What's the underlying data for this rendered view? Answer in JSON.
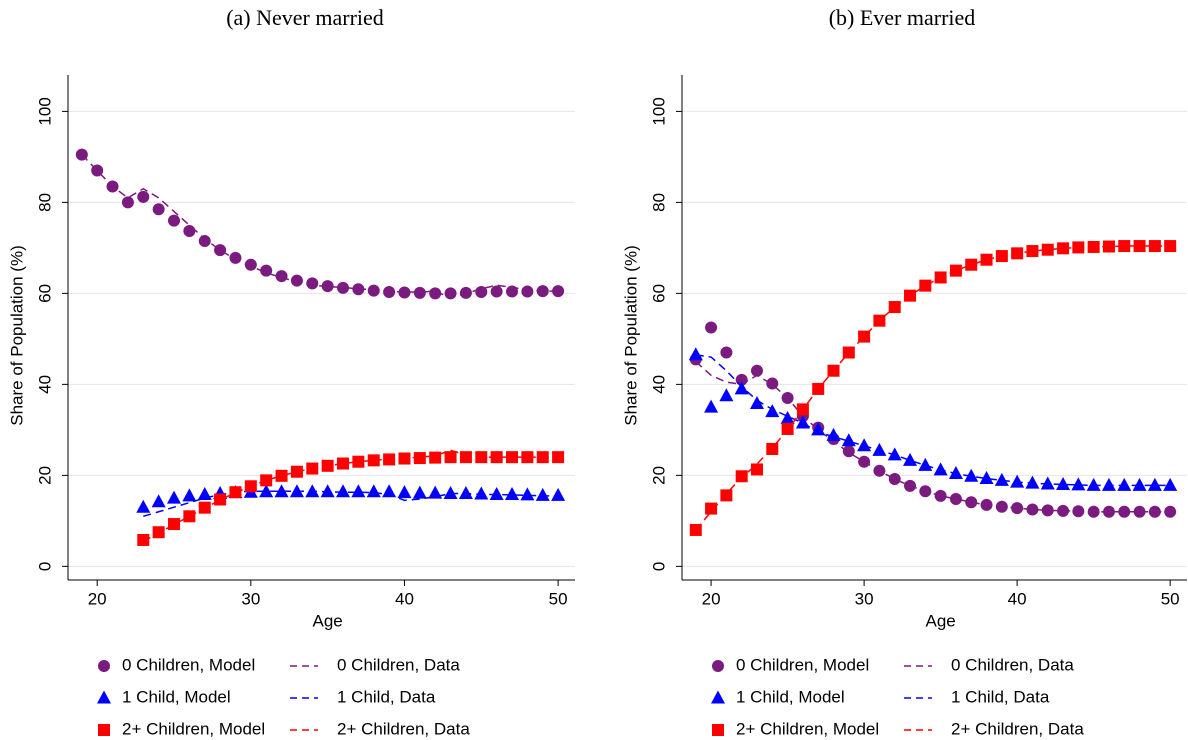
{
  "chart_data": [
    {
      "type": "line",
      "title": "(a) Never married",
      "xlabel": "Age",
      "ylabel": "Share of Population (%)",
      "x": [
        19,
        20,
        21,
        22,
        23,
        24,
        25,
        26,
        27,
        28,
        29,
        30,
        31,
        32,
        33,
        34,
        35,
        36,
        37,
        38,
        39,
        40,
        41,
        42,
        43,
        44,
        45,
        46,
        47,
        48,
        49,
        50
      ],
      "xlim": [
        18.1,
        51.1
      ],
      "ylim": [
        -3,
        108
      ],
      "xticks": [
        20,
        30,
        40,
        50
      ],
      "yticks": [
        0,
        20,
        40,
        60,
        80,
        100
      ],
      "grid": true,
      "legend": "bottom",
      "series": [
        {
          "name": "0 Children, Model",
          "color": "#7b1a7f",
          "marker": "circle",
          "values": [
            90.5,
            87,
            83.5,
            80,
            81.2,
            78.5,
            76,
            73.7,
            71.5,
            69.5,
            67.8,
            66.3,
            65,
            63.8,
            62.8,
            62.2,
            61.6,
            61.2,
            60.9,
            60.6,
            60.3,
            60.2,
            60.1,
            60,
            60,
            60.1,
            60.3,
            60.4,
            60.4,
            60.4,
            60.5,
            60.5
          ]
        },
        {
          "name": "0 Children, Data",
          "color": "#7b1a7f",
          "dash": true,
          "values": [
            90.5,
            87,
            83.5,
            81,
            83,
            81,
            78,
            75,
            72,
            69.5,
            67.5,
            66,
            64.5,
            63.5,
            62.5,
            61.8,
            61.5,
            61.3,
            61,
            60.8,
            60.5,
            60.3,
            60.3,
            60.5,
            59,
            60,
            61,
            61.8,
            61.3,
            60.8,
            60.5,
            60.5
          ]
        },
        {
          "name": "1 Child, Model",
          "color": "#0000ff",
          "marker": "triangle",
          "values": [
            null,
            null,
            null,
            null,
            13,
            14.2,
            15,
            15.5,
            15.8,
            16,
            16.2,
            16.3,
            16.4,
            16.4,
            16.4,
            16.4,
            16.4,
            16.4,
            16.4,
            16.4,
            16.4,
            16.2,
            16.1,
            16.1,
            16,
            16,
            15.9,
            15.8,
            15.8,
            15.7,
            15.6,
            15.6
          ]
        },
        {
          "name": "1 Child, Data",
          "color": "#0000ff",
          "dash": true,
          "values": [
            null,
            null,
            null,
            null,
            11,
            12,
            13,
            14,
            15,
            15.8,
            16.3,
            16.5,
            16.5,
            16.5,
            16.5,
            16.5,
            16.4,
            16.3,
            16.3,
            16.2,
            15.8,
            14.5,
            14.8,
            15.3,
            16,
            16,
            15.8,
            15.8,
            15.7,
            15.6,
            15.5,
            15.5
          ]
        },
        {
          "name": "2+ Children, Model",
          "color": "#ff0000",
          "marker": "square",
          "values": [
            null,
            null,
            null,
            null,
            5.8,
            7.5,
            9.3,
            11,
            12.9,
            14.7,
            16.3,
            17.6,
            18.9,
            19.9,
            20.8,
            21.5,
            22.1,
            22.6,
            23,
            23.3,
            23.5,
            23.7,
            23.8,
            23.9,
            24,
            24,
            24,
            24,
            24,
            24,
            24,
            24
          ]
        },
        {
          "name": "2+ Children, Data",
          "color": "#ff0000",
          "dash": true,
          "values": [
            null,
            null,
            null,
            null,
            5.5,
            7.3,
            9.2,
            11,
            12.8,
            14.6,
            16.2,
            17.6,
            18.9,
            19.9,
            20.8,
            21.5,
            22.1,
            22.6,
            23,
            23.3,
            23.6,
            23.8,
            24,
            24.3,
            25.5,
            24.5,
            24,
            24,
            24,
            24,
            24,
            24
          ]
        }
      ]
    },
    {
      "type": "line",
      "title": "(b) Ever married",
      "xlabel": "Age",
      "ylabel": "Share of Population (%)",
      "x": [
        19,
        20,
        21,
        22,
        23,
        24,
        25,
        26,
        27,
        28,
        29,
        30,
        31,
        32,
        33,
        34,
        35,
        36,
        37,
        38,
        39,
        40,
        41,
        42,
        43,
        44,
        45,
        46,
        47,
        48,
        49,
        50
      ],
      "xlim": [
        18.1,
        51.1
      ],
      "ylim": [
        -3,
        108
      ],
      "xticks": [
        20,
        30,
        40,
        50
      ],
      "yticks": [
        0,
        20,
        40,
        60,
        80,
        100
      ],
      "grid": true,
      "legend": "bottom",
      "series": [
        {
          "name": "0 Children, Model",
          "color": "#7b1a7f",
          "marker": "circle",
          "values": [
            45.5,
            52.5,
            47,
            41,
            43,
            40.2,
            37,
            33,
            30.5,
            28,
            25.3,
            23,
            21,
            19.2,
            17.7,
            16.5,
            15.5,
            14.8,
            14.1,
            13.5,
            13.1,
            12.8,
            12.5,
            12.3,
            12.2,
            12.1,
            12,
            12,
            12,
            12,
            12,
            12
          ]
        },
        {
          "name": "0 Children, Data",
          "color": "#7b1a7f",
          "dash": true,
          "values": [
            45,
            42,
            40.5,
            40,
            42,
            40,
            37,
            33,
            30,
            27.5,
            25,
            23,
            21,
            19.2,
            17.7,
            16.5,
            15.5,
            14.8,
            14.1,
            13.5,
            13.1,
            12.8,
            12.5,
            12.3,
            12.2,
            12.1,
            12,
            12,
            12,
            12,
            12,
            12
          ]
        },
        {
          "name": "1 Child, Model",
          "color": "#0000ff",
          "marker": "triangle",
          "values": [
            46.5,
            35,
            37.5,
            39,
            35.8,
            34,
            32.5,
            31.5,
            30,
            28.8,
            27.6,
            26.5,
            25.5,
            24.5,
            23.3,
            22.2,
            21.2,
            20.4,
            19.8,
            19.3,
            18.9,
            18.5,
            18.3,
            18.1,
            18,
            17.9,
            17.8,
            17.8,
            17.8,
            17.8,
            17.8,
            17.8
          ]
        },
        {
          "name": "1 Child, Data",
          "color": "#0000ff",
          "dash": true,
          "values": [
            46.5,
            46,
            43,
            39.5,
            36.5,
            34.5,
            33,
            31.5,
            29.5,
            28.5,
            27.5,
            26.5,
            25.5,
            24.5,
            23.3,
            22.2,
            21.2,
            20.4,
            19.8,
            19.3,
            18.9,
            18.5,
            18.3,
            18.1,
            18,
            17.9,
            17.8,
            17.8,
            17.8,
            17.8,
            17.8,
            17.8
          ]
        },
        {
          "name": "2+ Children, Model",
          "color": "#ff0000",
          "marker": "square",
          "values": [
            8,
            12.7,
            15.6,
            19.8,
            21.3,
            25.8,
            30.2,
            34.5,
            39,
            43,
            47,
            50.5,
            54,
            57,
            59.5,
            61.7,
            63.5,
            65,
            66.3,
            67.4,
            68.2,
            68.8,
            69.3,
            69.6,
            69.9,
            70.1,
            70.2,
            70.3,
            70.4,
            70.4,
            70.4,
            70.4
          ]
        },
        {
          "name": "2+ Children, Data",
          "color": "#ff0000",
          "dash": true,
          "values": [
            8,
            12,
            16,
            19.5,
            22.5,
            26,
            30,
            34.5,
            39,
            43,
            47,
            50.5,
            54,
            57,
            59.5,
            61.7,
            63.5,
            65,
            66.3,
            67.4,
            68.2,
            68.8,
            69.3,
            69.6,
            69.9,
            70.1,
            70.2,
            70.3,
            70.4,
            70.4,
            70.4,
            70.4
          ]
        }
      ]
    }
  ]
}
